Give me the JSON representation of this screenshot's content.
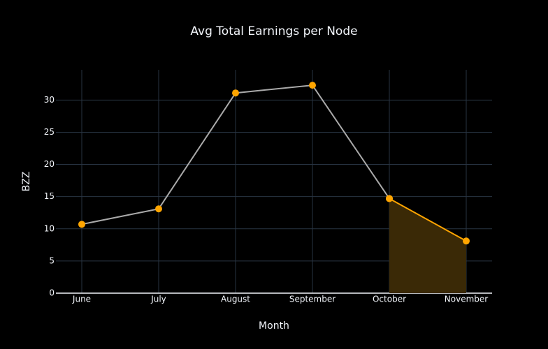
{
  "chart_data": {
    "type": "line",
    "title": "Avg Total Earnings per Node",
    "x_label": "Month",
    "y_label": "BZZ",
    "categories": [
      "June",
      "July",
      "August",
      "September",
      "October",
      "November"
    ],
    "series": [
      {
        "color": "#aaaaaa",
        "values": [
          10.7,
          13.1,
          31.1,
          32.3,
          14.7,
          null
        ]
      },
      {
        "color": "#ffa500",
        "values": [
          null,
          null,
          null,
          null,
          14.7,
          8.1
        ],
        "fill": true,
        "fill_color": "#3a2906"
      }
    ],
    "marker_color": "#ffa500",
    "ylim": [
      0,
      34.7
    ],
    "yticks": [
      0,
      5,
      10,
      15,
      20,
      25,
      30
    ],
    "grid": true
  }
}
